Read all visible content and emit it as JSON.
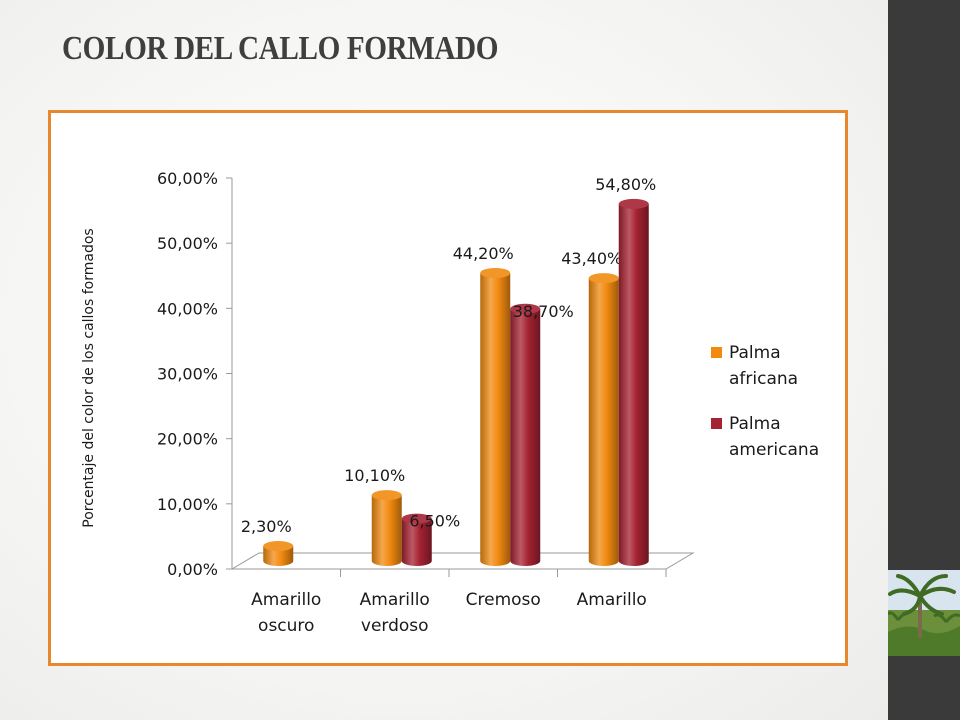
{
  "slide": {
    "title": "COLOR DEL CALLO FORMADO"
  },
  "photo": {
    "icon": "palm-tree-photo"
  },
  "colors": {
    "frame": "#e6892e",
    "series_1": "#f28a10",
    "series_2": "#a52232",
    "side_band": "#3a3a3a"
  },
  "chart_data": {
    "type": "bar",
    "style": "3d-cylinder",
    "title": "",
    "xlabel": "",
    "ylabel": "Porcentaje del color de los callos formados",
    "ylim": [
      0,
      60
    ],
    "yticks": [
      "0,00%",
      "10,00%",
      "20,00%",
      "30,00%",
      "40,00%",
      "50,00%",
      "60,00%"
    ],
    "categories": [
      [
        "Amarillo",
        "oscuro"
      ],
      [
        "Amarillo",
        "verdoso"
      ],
      [
        "Cremoso"
      ],
      [
        "Amarillo"
      ]
    ],
    "series": [
      {
        "name": "Palma africana",
        "color": "#f28a10",
        "values": [
          2.3,
          10.1,
          44.2,
          43.4
        ],
        "labels": [
          "2,30%",
          "10,10%",
          "44,20%",
          "43,40%"
        ]
      },
      {
        "name": "Palma americana",
        "color": "#a52232",
        "values": [
          null,
          6.5,
          38.7,
          54.8
        ],
        "labels": [
          null,
          "6,50%",
          "38,70%",
          "54,80%"
        ]
      }
    ],
    "legend": {
      "position": "right",
      "entries": [
        [
          "Palma",
          "africana"
        ],
        [
          "Palma",
          "americana"
        ]
      ]
    },
    "grid": false
  }
}
